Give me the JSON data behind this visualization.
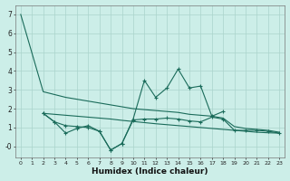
{
  "color": "#1a6b5a",
  "bg_color": "#cceee8",
  "grid_color": "#aad4cc",
  "xlabel": "Humidex (Indice chaleur)",
  "ylim": [
    -0.6,
    7.5
  ],
  "xlim": [
    -0.5,
    23.5
  ],
  "xticks": [
    0,
    1,
    2,
    3,
    4,
    5,
    6,
    7,
    8,
    9,
    10,
    11,
    12,
    13,
    14,
    15,
    16,
    17,
    18,
    19,
    20,
    21,
    22,
    23
  ],
  "yticks": [
    0,
    1,
    2,
    3,
    4,
    5,
    6,
    7
  ],
  "ytick_labels": [
    "-0",
    "1",
    "2",
    "3",
    "4",
    "5",
    "6",
    "7"
  ],
  "x_top": [
    0,
    2,
    3,
    4,
    5,
    6,
    7,
    8,
    9,
    10,
    11,
    12,
    13,
    14,
    15,
    16,
    17,
    18,
    19,
    20,
    21,
    22,
    23
  ],
  "y_top": [
    7.0,
    2.9,
    2.75,
    2.6,
    2.5,
    2.4,
    2.3,
    2.2,
    2.1,
    2.0,
    1.95,
    1.9,
    1.85,
    1.8,
    1.7,
    1.65,
    1.6,
    1.5,
    1.05,
    0.95,
    0.9,
    0.85,
    0.75
  ],
  "x_jag": [
    2,
    3,
    4,
    5,
    6,
    7,
    8,
    9,
    10,
    11,
    12,
    13,
    14,
    15,
    16,
    17,
    18
  ],
  "y_jag": [
    1.75,
    1.3,
    1.1,
    1.05,
    1.0,
    0.8,
    -0.2,
    0.15,
    1.45,
    3.5,
    2.6,
    3.1,
    4.1,
    3.1,
    3.2,
    1.6,
    1.85
  ],
  "x_bot": [
    2,
    3,
    4,
    5,
    6,
    7,
    8,
    9,
    10,
    11,
    12,
    13,
    14,
    15,
    16,
    17,
    18,
    19,
    20,
    21,
    22,
    23
  ],
  "y_bot": [
    1.75,
    1.3,
    0.7,
    0.95,
    1.1,
    0.8,
    -0.2,
    0.15,
    1.4,
    1.45,
    1.45,
    1.5,
    1.45,
    1.35,
    1.3,
    1.55,
    1.45,
    0.85,
    0.85,
    0.85,
    0.8,
    0.7
  ],
  "x_flat": [
    2,
    3,
    4,
    5,
    6,
    7,
    8,
    9,
    10,
    11,
    12,
    13,
    14,
    15,
    16,
    17,
    18,
    19,
    20,
    21,
    22,
    23
  ],
  "y_flat": [
    1.75,
    1.7,
    1.65,
    1.6,
    1.55,
    1.5,
    1.45,
    1.38,
    1.32,
    1.26,
    1.2,
    1.15,
    1.1,
    1.05,
    1.0,
    0.95,
    0.9,
    0.85,
    0.8,
    0.75,
    0.72,
    0.7
  ]
}
